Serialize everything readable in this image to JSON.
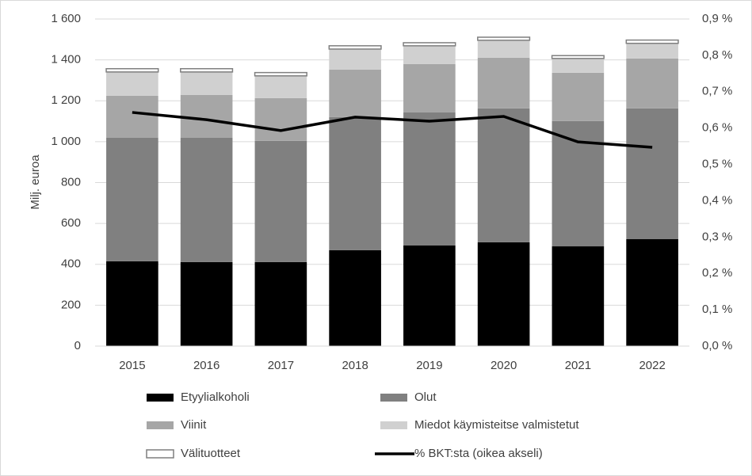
{
  "chart_data": {
    "type": "bar",
    "stacked": true,
    "y_label": "Milj. euroa",
    "categories": [
      "2015",
      "2016",
      "2017",
      "2018",
      "2019",
      "2020",
      "2021",
      "2022"
    ],
    "series": [
      {
        "name": "Etyylialkoholi",
        "color": "#000000",
        "values": [
          415,
          411,
          411,
          469,
          492,
          508,
          488,
          523
        ]
      },
      {
        "name": "Olut",
        "color": "#808080",
        "values": [
          604,
          608,
          593,
          651,
          651,
          655,
          613,
          640
        ]
      },
      {
        "name": "Viinit",
        "color": "#a6a6a6",
        "values": [
          206,
          210,
          209,
          233,
          237,
          248,
          236,
          244
        ]
      },
      {
        "name": "Miedot käymisteitse valmistetut",
        "color": "#d0d0d0",
        "values": [
          116,
          112,
          109,
          100,
          89,
          85,
          70,
          74
        ]
      },
      {
        "name": "Välituotteet",
        "color": "#ffffff",
        "values": [
          16,
          16,
          16,
          16,
          15,
          15,
          14,
          16
        ]
      },
      {
        "name": "% BKT:sta (oikea akseli)",
        "color": "#000000",
        "type": "line",
        "axis": "y2",
        "values": [
          0.643,
          0.623,
          0.593,
          0.63,
          0.619,
          0.632,
          0.562,
          0.547
        ]
      }
    ],
    "ylim": [
      0,
      1600
    ],
    "yticks": [
      0,
      200,
      400,
      600,
      800,
      {
        "value": 1000,
        "label": "1 000"
      },
      {
        "value": 1200,
        "label": "1 200"
      },
      {
        "value": 1400,
        "label": "1 400"
      },
      {
        "value": 1600,
        "label": "1 600"
      }
    ],
    "y2lim": [
      0,
      0.9
    ],
    "y2ticks": [
      {
        "value": 0,
        "label": "0,0 %"
      },
      {
        "value": 0.1,
        "label": "0,1 %"
      },
      {
        "value": 0.2,
        "label": "0,2 %"
      },
      {
        "value": 0.3,
        "label": "0,3 %"
      },
      {
        "value": 0.4,
        "label": "0,4 %"
      },
      {
        "value": 0.5,
        "label": "0,5 %"
      },
      {
        "value": 0.6,
        "label": "0,6 %"
      },
      {
        "value": 0.7,
        "label": "0,7 %"
      },
      {
        "value": 0.8,
        "label": "0,8 %"
      },
      {
        "value": 0.9,
        "label": "0,9 %"
      }
    ],
    "grid": true,
    "legend": "bottom"
  }
}
